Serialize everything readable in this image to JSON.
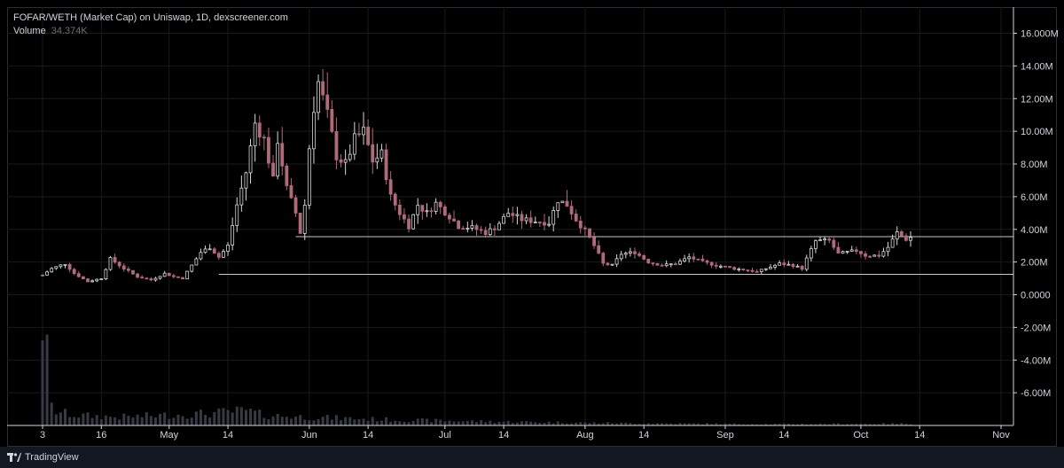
{
  "header": {
    "title": "FOFAR/WETH (Market Cap) on Uniswap, 1D, dexscreener.com",
    "volume_label": "Volume",
    "volume_value": "34.374K"
  },
  "footer": {
    "brand": "TradingView"
  },
  "colors": {
    "up": "#d8d8d8",
    "down": "#b06a78",
    "volume": "#363a45",
    "grid": "#1a1a1a",
    "level_line": "#c8c8c8"
  },
  "chart_data": {
    "type": "candlestick",
    "title": "FOFAR/WETH (Market Cap) on Uniswap, 1D, dexscreener.com",
    "y_axis": {
      "ticks": [
        16,
        14,
        12,
        10,
        8,
        6,
        4,
        2,
        0,
        -2,
        -4,
        -6
      ],
      "tick_labels": [
        "16.000M",
        "14.00M",
        "12.00M",
        "10.00M",
        "8.00M",
        "6.00M",
        "4.00M",
        "2.00M",
        "0.0000",
        "-2.00M",
        "-4.00M",
        "-6.00M"
      ],
      "unit": "M",
      "range": [
        -8,
        17.6
      ]
    },
    "x_axis": {
      "range": [
        "2024-04-03",
        "2024-11-01"
      ],
      "ticks": [
        {
          "date": "2024-04-03",
          "label": "3"
        },
        {
          "date": "2024-04-16",
          "label": "16"
        },
        {
          "date": "2024-05-01",
          "label": "May"
        },
        {
          "date": "2024-05-14",
          "label": "14"
        },
        {
          "date": "2024-06-01",
          "label": "Jun"
        },
        {
          "date": "2024-06-14",
          "label": "14"
        },
        {
          "date": "2024-07-01",
          "label": "Jul"
        },
        {
          "date": "2024-07-14",
          "label": "14"
        },
        {
          "date": "2024-08-01",
          "label": "Aug"
        },
        {
          "date": "2024-08-14",
          "label": "14"
        },
        {
          "date": "2024-09-01",
          "label": "Sep"
        },
        {
          "date": "2024-09-14",
          "label": "14"
        },
        {
          "date": "2024-10-01",
          "label": "Oct"
        },
        {
          "date": "2024-10-14",
          "label": "14"
        },
        {
          "date": "2024-11-01",
          "label": "Nov"
        }
      ]
    },
    "series": [
      {
        "name": "Market Cap",
        "key_points": [
          [
            "2024-04-03",
            1.2
          ],
          [
            "2024-04-05",
            1.6
          ],
          [
            "2024-04-08",
            1.9
          ],
          [
            "2024-04-10",
            1.3
          ],
          [
            "2024-04-13",
            0.8
          ],
          [
            "2024-04-16",
            1.0
          ],
          [
            "2024-04-18",
            2.2
          ],
          [
            "2024-04-21",
            1.6
          ],
          [
            "2024-04-24",
            1.1
          ],
          [
            "2024-04-27",
            0.9
          ],
          [
            "2024-04-30",
            1.3
          ],
          [
            "2024-05-02",
            1.1
          ],
          [
            "2024-05-04",
            1.0
          ],
          [
            "2024-05-06",
            1.8
          ],
          [
            "2024-05-08",
            2.6
          ],
          [
            "2024-05-10",
            2.9
          ],
          [
            "2024-05-12",
            2.3
          ],
          [
            "2024-05-14",
            3.0
          ],
          [
            "2024-05-16",
            5.5
          ],
          [
            "2024-05-18",
            7.5
          ],
          [
            "2024-05-20",
            10.5
          ],
          [
            "2024-05-22",
            9.5
          ],
          [
            "2024-05-24",
            7.0
          ],
          [
            "2024-05-25",
            9.5
          ],
          [
            "2024-05-27",
            6.5
          ],
          [
            "2024-05-29",
            5.0
          ],
          [
            "2024-05-30",
            3.8
          ],
          [
            "2024-05-31",
            5.5
          ],
          [
            "2024-06-01",
            9.0
          ],
          [
            "2024-06-02",
            11.5
          ],
          [
            "2024-06-03",
            13.0
          ],
          [
            "2024-06-05",
            11.0
          ],
          [
            "2024-06-07",
            8.5
          ],
          [
            "2024-06-09",
            8.0
          ],
          [
            "2024-06-11",
            9.5
          ],
          [
            "2024-06-13",
            10.0
          ],
          [
            "2024-06-15",
            8.2
          ],
          [
            "2024-06-17",
            8.6
          ],
          [
            "2024-06-19",
            6.0
          ],
          [
            "2024-06-21",
            5.0
          ],
          [
            "2024-06-23",
            4.2
          ],
          [
            "2024-06-25",
            5.5
          ],
          [
            "2024-06-27",
            5.0
          ],
          [
            "2024-06-29",
            5.6
          ],
          [
            "2024-07-02",
            4.8
          ],
          [
            "2024-07-04",
            4.2
          ],
          [
            "2024-07-07",
            4.1
          ],
          [
            "2024-07-10",
            3.8
          ],
          [
            "2024-07-12",
            4.1
          ],
          [
            "2024-07-15",
            5.0
          ],
          [
            "2024-07-18",
            4.6
          ],
          [
            "2024-07-21",
            4.5
          ],
          [
            "2024-07-24",
            4.4
          ],
          [
            "2024-07-26",
            5.8
          ],
          [
            "2024-07-28",
            5.5
          ],
          [
            "2024-07-30",
            4.6
          ],
          [
            "2024-08-01",
            3.9
          ],
          [
            "2024-08-03",
            3.0
          ],
          [
            "2024-08-05",
            1.9
          ],
          [
            "2024-08-07",
            1.8
          ],
          [
            "2024-08-09",
            2.5
          ],
          [
            "2024-08-12",
            2.6
          ],
          [
            "2024-08-15",
            2.0
          ],
          [
            "2024-08-18",
            1.8
          ],
          [
            "2024-08-21",
            1.9
          ],
          [
            "2024-08-24",
            2.3
          ],
          [
            "2024-08-27",
            2.0
          ],
          [
            "2024-08-30",
            1.8
          ],
          [
            "2024-09-03",
            1.6
          ],
          [
            "2024-09-06",
            1.5
          ],
          [
            "2024-09-08",
            1.4
          ],
          [
            "2024-09-10",
            1.6
          ],
          [
            "2024-09-13",
            1.9
          ],
          [
            "2024-09-16",
            1.8
          ],
          [
            "2024-09-18",
            1.6
          ],
          [
            "2024-09-19",
            2.2
          ],
          [
            "2024-09-21",
            3.3
          ],
          [
            "2024-09-24",
            3.3
          ],
          [
            "2024-09-26",
            2.5
          ],
          [
            "2024-09-28",
            2.6
          ],
          [
            "2024-09-30",
            2.7
          ],
          [
            "2024-10-02",
            2.4
          ],
          [
            "2024-10-05",
            2.4
          ],
          [
            "2024-10-07",
            2.9
          ],
          [
            "2024-10-09",
            3.8
          ],
          [
            "2024-10-11",
            3.4
          ],
          [
            "2024-10-12",
            3.5
          ]
        ]
      }
    ],
    "volume": {
      "name": "Volume",
      "key_points": [
        [
          "2024-04-03",
          11.5
        ],
        [
          "2024-04-04",
          7.5
        ],
        [
          "2024-04-05",
          2.0
        ],
        [
          "2024-04-06",
          1.5
        ],
        [
          "2024-04-10",
          1.1
        ],
        [
          "2024-04-20",
          0.9
        ],
        [
          "2024-05-10",
          1.3
        ],
        [
          "2024-05-18",
          1.6
        ],
        [
          "2024-05-22",
          1.1
        ],
        [
          "2024-06-01",
          0.9
        ],
        [
          "2024-06-20",
          0.6
        ],
        [
          "2024-07-15",
          0.4
        ],
        [
          "2024-08-10",
          0.25
        ],
        [
          "2024-09-10",
          0.15
        ],
        [
          "2024-10-12",
          0.2
        ]
      ]
    },
    "horizontal_lines": [
      {
        "value": 3.55,
        "from": "2024-05-29",
        "to": "2024-10-31"
      },
      {
        "value": 1.25,
        "from": "2024-05-12",
        "to": "2024-10-31"
      }
    ],
    "grid": true
  }
}
